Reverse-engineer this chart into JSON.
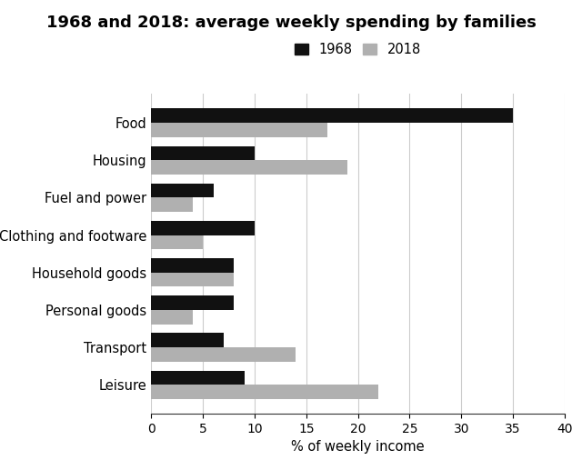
{
  "title": "1968 and 2018: average weekly spending by families",
  "categories": [
    "Food",
    "Housing",
    "Fuel and power",
    "Clothing and footware",
    "Household goods",
    "Personal goods",
    "Transport",
    "Leisure"
  ],
  "values_1968": [
    35,
    10,
    6,
    10,
    8,
    8,
    7,
    9
  ],
  "values_2018": [
    17,
    19,
    4,
    5,
    8,
    4,
    14,
    22
  ],
  "color_1968": "#111111",
  "color_2018": "#b0b0b0",
  "xlabel": "% of weekly income",
  "xlim": [
    0,
    40
  ],
  "xticks": [
    0,
    5,
    10,
    15,
    20,
    25,
    30,
    35,
    40
  ],
  "legend_labels": [
    "1968",
    "2018"
  ],
  "bar_height": 0.38,
  "title_fontsize": 13,
  "label_fontsize": 10.5,
  "tick_fontsize": 10,
  "background_color": "#ffffff"
}
